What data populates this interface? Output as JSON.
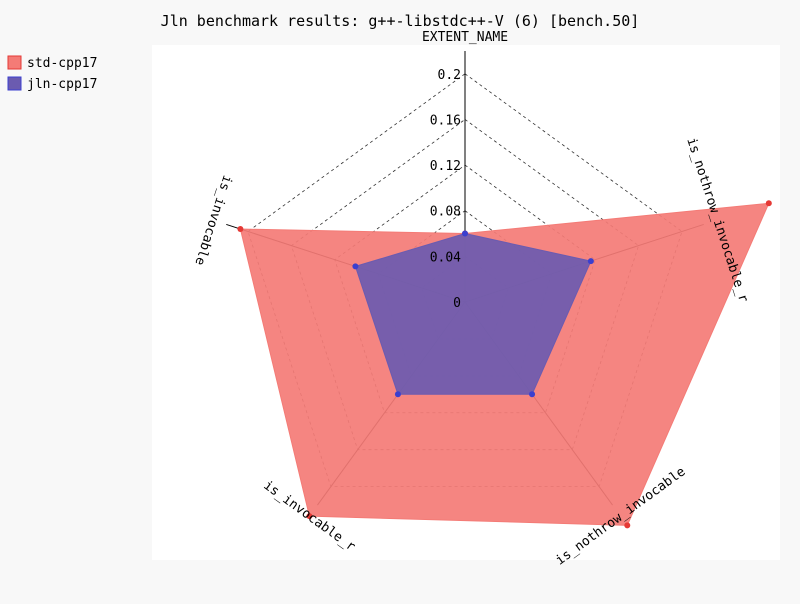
{
  "chart_data": {
    "type": "radar",
    "title": "Jln benchmark results: g++-libstdc++-V (6) [bench.50]",
    "axes": [
      "EXTENT_NAME",
      "is_nothrow_invocable_r",
      "is_nothrow_invocable",
      "is_invocable_r",
      "is_invocable"
    ],
    "radial_ticks": [
      "0",
      "0.04",
      "0.08",
      "0.12",
      "0.16",
      "0.2"
    ],
    "tick_values": [
      0,
      0.04,
      0.08,
      0.12,
      0.16,
      0.2
    ],
    "rmax": 0.22,
    "grid": true,
    "legend_position": "top-left",
    "series": [
      {
        "name": "std-cpp17",
        "color": "#f47b76",
        "stroke": "#e53935",
        "values": [
          0.06,
          0.28,
          0.242,
          0.232,
          0.207
        ]
      },
      {
        "name": "jln-cpp17",
        "color": "#6b5bb0",
        "stroke": "#3b3fcf",
        "values": [
          0.06,
          0.116,
          0.1,
          0.1,
          0.101
        ]
      }
    ]
  }
}
